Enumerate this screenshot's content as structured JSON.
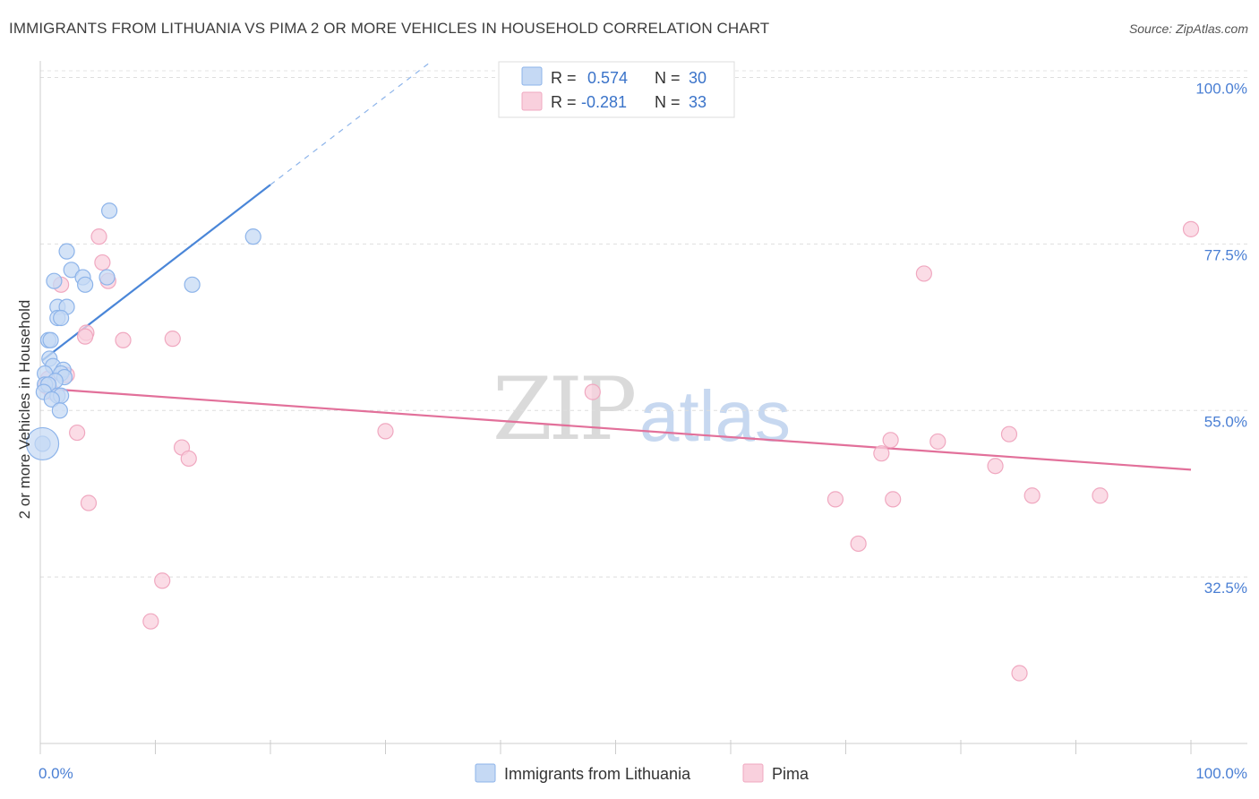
{
  "title": "IMMIGRANTS FROM LITHUANIA VS PIMA 2 OR MORE VEHICLES IN HOUSEHOLD CORRELATION CHART",
  "source": "Source: ZipAtlas.com",
  "watermark": {
    "zip": "ZIP",
    "atlas": "atlas"
  },
  "stats_legend": [
    {
      "r_label": "R =",
      "r_value": "0.574",
      "n_label": "N =",
      "n_value": "30",
      "color": "#8db4ea",
      "fill": "#c5d9f4"
    },
    {
      "r_label": "R =",
      "r_value": "-0.281",
      "n_label": "N =",
      "n_value": "33",
      "color": "#f0a8c0",
      "fill": "#f9d0dd"
    }
  ],
  "bottom_legend": [
    {
      "label": "Immigrants from Lithuania",
      "color": "#8db4ea",
      "fill": "#c5d9f4"
    },
    {
      "label": "Pima",
      "color": "#f0a8c0",
      "fill": "#f9d0dd"
    }
  ],
  "chart_data": {
    "type": "scatter",
    "title": "IMMIGRANTS FROM LITHUANIA VS PIMA 2 OR MORE VEHICLES IN HOUSEHOLD CORRELATION CHART",
    "xlabel": "",
    "ylabel": "2 or more Vehicles in Household",
    "xlim": [
      0,
      100
    ],
    "ylim": [
      10,
      102
    ],
    "x_tick_labels": [
      "0.0%",
      "100.0%"
    ],
    "y_ticks": [
      32.5,
      55.0,
      77.5,
      100.0
    ],
    "y_tick_labels": [
      "32.5%",
      "55.0%",
      "77.5%",
      "100.0%"
    ],
    "grid": true,
    "series": [
      {
        "name": "Immigrants from Lithuania",
        "color": "#4a86d8",
        "fill": "#c5d9f4",
        "stroke": "#8db4ea",
        "r": 0.574,
        "n": 30,
        "points": [
          [
            6.0,
            82.0
          ],
          [
            18.5,
            78.5
          ],
          [
            2.3,
            76.5
          ],
          [
            2.7,
            74.0
          ],
          [
            5.8,
            73.0
          ],
          [
            3.7,
            73.0
          ],
          [
            1.2,
            72.5
          ],
          [
            13.2,
            72.0
          ],
          [
            3.9,
            72.0
          ],
          [
            1.5,
            69.0
          ],
          [
            2.3,
            69.0
          ],
          [
            1.5,
            67.5
          ],
          [
            1.8,
            67.5
          ],
          [
            0.7,
            64.5
          ],
          [
            0.9,
            64.5
          ],
          [
            0.8,
            62.0
          ],
          [
            1.1,
            61.0
          ],
          [
            2.0,
            60.5
          ],
          [
            1.8,
            60.0
          ],
          [
            0.4,
            60.0
          ],
          [
            2.1,
            59.5
          ],
          [
            1.3,
            59.0
          ],
          [
            0.4,
            58.5
          ],
          [
            0.7,
            58.5
          ],
          [
            0.3,
            57.5
          ],
          [
            1.5,
            57.0
          ],
          [
            1.8,
            57.0
          ],
          [
            1.0,
            56.5
          ],
          [
            1.7,
            55.0
          ],
          [
            0.2,
            50.5
          ]
        ],
        "big_points": [
          [
            0.2,
            50.5
          ]
        ],
        "trend": {
          "x0": 0.2,
          "y0": 61.8,
          "x1": 20.0,
          "y1": 85.5,
          "dash_to_x": 34.0,
          "dash_to_y": 102.2
        }
      },
      {
        "name": "Pima",
        "color": "#e2709a",
        "fill": "#f9d0dd",
        "stroke": "#f0a8c0",
        "r": -0.281,
        "n": 33,
        "points": [
          [
            5.1,
            78.5
          ],
          [
            100.0,
            79.5
          ],
          [
            5.4,
            75.0
          ],
          [
            5.9,
            72.5
          ],
          [
            1.8,
            72.0
          ],
          [
            76.8,
            73.5
          ],
          [
            4.0,
            65.5
          ],
          [
            3.9,
            65.0
          ],
          [
            7.2,
            64.5
          ],
          [
            11.5,
            64.7
          ],
          [
            0.7,
            59.3
          ],
          [
            2.3,
            59.8
          ],
          [
            0.5,
            58.3
          ],
          [
            48.0,
            57.5
          ],
          [
            3.2,
            52.0
          ],
          [
            30.0,
            52.2
          ],
          [
            12.3,
            50.0
          ],
          [
            12.9,
            48.5
          ],
          [
            73.9,
            51.0
          ],
          [
            78.0,
            50.8
          ],
          [
            84.2,
            51.8
          ],
          [
            73.1,
            49.2
          ],
          [
            83.0,
            47.5
          ],
          [
            74.1,
            43.0
          ],
          [
            86.2,
            43.5
          ],
          [
            92.1,
            43.5
          ],
          [
            69.1,
            43.0
          ],
          [
            4.2,
            42.5
          ],
          [
            71.1,
            37.0
          ],
          [
            10.6,
            32.0
          ],
          [
            9.6,
            26.5
          ],
          [
            85.1,
            19.5
          ],
          [
            1.0,
            57.5
          ]
        ],
        "trend": {
          "x0": 0.0,
          "y0": 58.0,
          "x1": 100.0,
          "y1": 47.0
        }
      }
    ]
  }
}
